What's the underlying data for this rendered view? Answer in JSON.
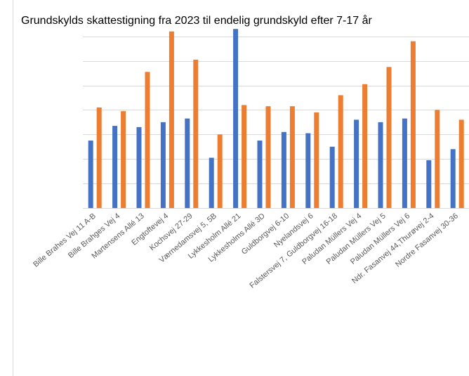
{
  "chart_data": {
    "type": "bar",
    "title": "Grundskylds skattestigning fra 2023 til endelig grundskyld efter 7-17 år",
    "categories": [
      "Bille Brahes Vej 11 A-B",
      "Bille Brahges Vej 4",
      "Martensens Allé 13",
      "Engtoftevej 4",
      "Kochsvej 27-29",
      "Værnedamsvej 5, 5B",
      "Lykkesholm Allé 21",
      "Lykkesholms Allé 3D",
      "Guldborgvej 6-10",
      "Nyelandsvej 6",
      "Falstersvej 7, Guldborgvej 16-18",
      "Paludan Müllers Vej 4",
      "Paludan Müllers Vej 5",
      "Paludan Müllers Vej 6",
      "Ndr. Fasanvej 44,Thurøvej 2-4",
      "Nordre Fasanvej 30-36"
    ],
    "series": [
      {
        "color": "#4472c4",
        "values": [
          2.75,
          3.35,
          3.3,
          3.5,
          3.65,
          2.05,
          7.3,
          2.75,
          3.1,
          3.05,
          2.5,
          3.6,
          3.5,
          3.65,
          1.95,
          2.4
        ]
      },
      {
        "color": "#ed7d31",
        "values": [
          4.1,
          3.95,
          5.55,
          7.2,
          6.05,
          3.0,
          4.2,
          4.15,
          4.15,
          3.9,
          4.6,
          5.05,
          5.75,
          6.8,
          4.0,
          3.6
        ]
      }
    ],
    "ylim": [
      0,
      7.5
    ],
    "yticks": [
      0,
      1,
      2,
      3,
      4,
      5,
      6,
      7
    ],
    "grid": true
  }
}
